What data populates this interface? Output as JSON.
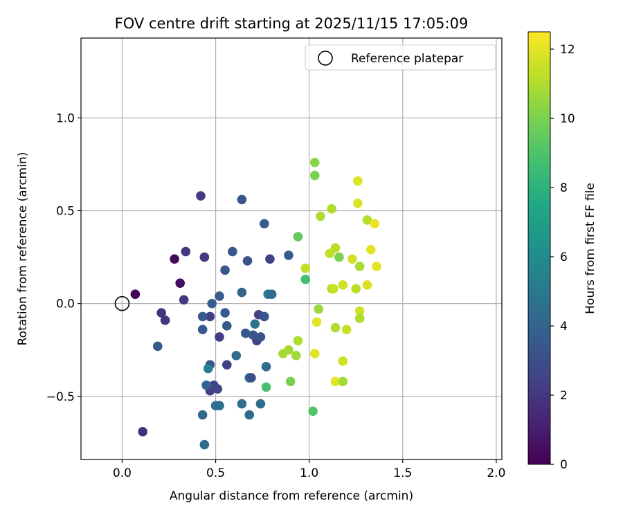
{
  "chart_data": {
    "type": "scatter",
    "title": "FOV centre drift starting at 2025/11/15 17:05:09",
    "xlabel": "Angular distance from reference (arcmin)",
    "ylabel": "Rotation from reference (arcmin)",
    "xlim": [
      -0.22,
      2.03
    ],
    "ylim": [
      -0.84,
      1.43
    ],
    "xticks": [
      0.0,
      0.5,
      1.0,
      1.5,
      2.0
    ],
    "xtick_labels": [
      "0.0",
      "0.5",
      "1.0",
      "1.5",
      "2.0"
    ],
    "yticks": [
      -0.5,
      0.0,
      0.5,
      1.0
    ],
    "ytick_labels": [
      "−0.5",
      "0.0",
      "0.5",
      "1.0"
    ],
    "grid": true,
    "legend": {
      "position": "top-right",
      "entries": [
        "Reference platepar"
      ]
    },
    "reference_point": {
      "x": 0.0,
      "y": 0.0,
      "label": "Reference platepar"
    },
    "colorbar": {
      "label": "Hours from first FF file",
      "range": [
        0,
        12.5
      ],
      "ticks": [
        0,
        2,
        4,
        6,
        8,
        10,
        12
      ],
      "tick_labels": [
        "0",
        "2",
        "4",
        "6",
        "8",
        "10",
        "12"
      ],
      "colormap": [
        "#440154",
        "#482475",
        "#414487",
        "#355f8d",
        "#2a788e",
        "#21918c",
        "#22a884",
        "#44bf70",
        "#7ad151",
        "#bddf26",
        "#fde725"
      ]
    },
    "points": [
      {
        "x": 0.07,
        "y": 0.05,
        "t": 0.1
      },
      {
        "x": 0.28,
        "y": 0.24,
        "t": 0.3
      },
      {
        "x": 0.31,
        "y": 0.11,
        "t": 0.4
      },
      {
        "x": 0.11,
        "y": -0.69,
        "t": 1.7
      },
      {
        "x": 0.21,
        "y": -0.05,
        "t": 1.8
      },
      {
        "x": 0.23,
        "y": -0.09,
        "t": 1.9
      },
      {
        "x": 0.33,
        "y": 0.02,
        "t": 2.0
      },
      {
        "x": 0.34,
        "y": 0.28,
        "t": 2.0
      },
      {
        "x": 0.42,
        "y": 0.58,
        "t": 2.2
      },
      {
        "x": 0.44,
        "y": 0.25,
        "t": 2.2
      },
      {
        "x": 0.47,
        "y": -0.07,
        "t": 2.3
      },
      {
        "x": 0.47,
        "y": -0.47,
        "t": 2.3
      },
      {
        "x": 0.52,
        "y": -0.18,
        "t": 2.3
      },
      {
        "x": 0.56,
        "y": -0.33,
        "t": 2.3
      },
      {
        "x": 0.49,
        "y": -0.44,
        "t": 2.5
      },
      {
        "x": 0.51,
        "y": -0.46,
        "t": 2.6
      },
      {
        "x": 0.72,
        "y": -0.2,
        "t": 2.4
      },
      {
        "x": 0.73,
        "y": -0.06,
        "t": 2.4
      },
      {
        "x": 0.79,
        "y": 0.24,
        "t": 2.4
      },
      {
        "x": 0.19,
        "y": -0.23,
        "t": 3.5
      },
      {
        "x": 0.43,
        "y": -0.07,
        "t": 3.5
      },
      {
        "x": 0.43,
        "y": -0.14,
        "t": 3.5
      },
      {
        "x": 0.47,
        "y": -0.33,
        "t": 3.3
      },
      {
        "x": 0.52,
        "y": 0.04,
        "t": 3.6
      },
      {
        "x": 0.55,
        "y": -0.05,
        "t": 3.6
      },
      {
        "x": 0.56,
        "y": -0.12,
        "t": 3.5
      },
      {
        "x": 0.55,
        "y": 0.18,
        "t": 3.4
      },
      {
        "x": 0.59,
        "y": 0.28,
        "t": 3.4
      },
      {
        "x": 0.64,
        "y": 0.56,
        "t": 3.3
      },
      {
        "x": 0.67,
        "y": 0.23,
        "t": 3.3
      },
      {
        "x": 0.66,
        "y": -0.16,
        "t": 3.4
      },
      {
        "x": 0.7,
        "y": -0.17,
        "t": 3.3
      },
      {
        "x": 0.74,
        "y": -0.18,
        "t": 3.2
      },
      {
        "x": 0.76,
        "y": -0.07,
        "t": 3.3
      },
      {
        "x": 0.76,
        "y": 0.43,
        "t": 3.6
      },
      {
        "x": 0.89,
        "y": 0.26,
        "t": 3.6
      },
      {
        "x": 0.48,
        "y": 0.0,
        "t": 3.8
      },
      {
        "x": 0.43,
        "y": -0.6,
        "t": 4.2
      },
      {
        "x": 0.44,
        "y": -0.76,
        "t": 4.3
      },
      {
        "x": 0.45,
        "y": -0.44,
        "t": 4.0
      },
      {
        "x": 0.5,
        "y": -0.55,
        "t": 4.5
      },
      {
        "x": 0.52,
        "y": -0.55,
        "t": 4.5
      },
      {
        "x": 0.61,
        "y": -0.28,
        "t": 4.4
      },
      {
        "x": 0.64,
        "y": 0.06,
        "t": 4.1
      },
      {
        "x": 0.64,
        "y": -0.54,
        "t": 4.4
      },
      {
        "x": 0.68,
        "y": -0.6,
        "t": 4.4
      },
      {
        "x": 0.68,
        "y": -0.4,
        "t": 4.7
      },
      {
        "x": 0.69,
        "y": -0.4,
        "t": 3.0
      },
      {
        "x": 0.71,
        "y": -0.11,
        "t": 4.7
      },
      {
        "x": 0.74,
        "y": -0.54,
        "t": 4.4
      },
      {
        "x": 0.77,
        "y": -0.34,
        "t": 4.4
      },
      {
        "x": 0.78,
        "y": 0.05,
        "t": 5.0
      },
      {
        "x": 0.8,
        "y": 0.05,
        "t": 4.3
      },
      {
        "x": 0.46,
        "y": -0.35,
        "t": 5.3
      },
      {
        "x": 0.77,
        "y": -0.45,
        "t": 8.8
      },
      {
        "x": 0.94,
        "y": 0.36,
        "t": 9.5
      },
      {
        "x": 0.98,
        "y": 0.13,
        "t": 8.7
      },
      {
        "x": 1.02,
        "y": -0.58,
        "t": 9.0
      },
      {
        "x": 1.03,
        "y": 0.69,
        "t": 10.0
      },
      {
        "x": 1.03,
        "y": 0.76,
        "t": 10.3
      },
      {
        "x": 0.86,
        "y": -0.27,
        "t": 10.8
      },
      {
        "x": 0.89,
        "y": -0.25,
        "t": 10.8
      },
      {
        "x": 0.9,
        "y": -0.42,
        "t": 10.0
      },
      {
        "x": 0.93,
        "y": -0.28,
        "t": 10.7
      },
      {
        "x": 0.94,
        "y": -0.2,
        "t": 11.0
      },
      {
        "x": 0.98,
        "y": 0.19,
        "t": 11.4
      },
      {
        "x": 1.03,
        "y": -0.27,
        "t": 12.0
      },
      {
        "x": 1.04,
        "y": -0.1,
        "t": 12.0
      },
      {
        "x": 1.05,
        "y": -0.03,
        "t": 10.6
      },
      {
        "x": 1.06,
        "y": 0.47,
        "t": 11.0
      },
      {
        "x": 1.11,
        "y": 0.27,
        "t": 11.3
      },
      {
        "x": 1.12,
        "y": 0.08,
        "t": 11.1
      },
      {
        "x": 1.13,
        "y": 0.08,
        "t": 11.4
      },
      {
        "x": 1.12,
        "y": 0.51,
        "t": 11.0
      },
      {
        "x": 1.14,
        "y": 0.3,
        "t": 11.2
      },
      {
        "x": 1.14,
        "y": -0.13,
        "t": 11.0
      },
      {
        "x": 1.14,
        "y": -0.42,
        "t": 12.0
      },
      {
        "x": 1.16,
        "y": 0.25,
        "t": 10.0
      },
      {
        "x": 1.18,
        "y": 0.1,
        "t": 11.6
      },
      {
        "x": 1.18,
        "y": -0.31,
        "t": 11.6
      },
      {
        "x": 1.18,
        "y": -0.42,
        "t": 10.8
      },
      {
        "x": 1.2,
        "y": -0.14,
        "t": 11.4
      },
      {
        "x": 1.23,
        "y": 0.24,
        "t": 11.7
      },
      {
        "x": 1.25,
        "y": 0.08,
        "t": 11.2
      },
      {
        "x": 1.26,
        "y": 0.66,
        "t": 11.9
      },
      {
        "x": 1.26,
        "y": 0.54,
        "t": 11.8
      },
      {
        "x": 1.27,
        "y": 0.2,
        "t": 10.9
      },
      {
        "x": 1.27,
        "y": -0.04,
        "t": 11.6
      },
      {
        "x": 1.27,
        "y": -0.08,
        "t": 11.0
      },
      {
        "x": 1.31,
        "y": 0.45,
        "t": 11.1
      },
      {
        "x": 1.31,
        "y": 0.1,
        "t": 11.8
      },
      {
        "x": 1.33,
        "y": 0.29,
        "t": 12.0
      },
      {
        "x": 1.35,
        "y": 0.43,
        "t": 12.1
      },
      {
        "x": 1.36,
        "y": 0.2,
        "t": 12.0
      }
    ]
  }
}
